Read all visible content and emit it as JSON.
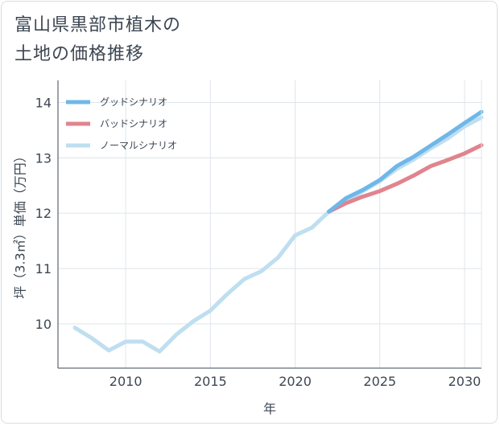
{
  "title_lines": [
    "富山県黒部市植木の",
    "土地の価格推移"
  ],
  "chart_data": {
    "type": "line",
    "title": "富山県黒部市植木の土地の価格推移",
    "xlabel": "年",
    "ylabel": "坪（3.3㎡）単価（万円）",
    "xlim": [
      2006,
      2031
    ],
    "ylim": [
      9.2,
      14.4
    ],
    "xticks": [
      2010,
      2015,
      2020,
      2025,
      2030
    ],
    "yticks": [
      10,
      11,
      12,
      13,
      14
    ],
    "legend_position": "top-left",
    "series": [
      {
        "name": "グッドシナリオ",
        "color": "#6fb7e8",
        "x": [
          2022,
          2023,
          2024,
          2025,
          2026,
          2027,
          2028,
          2029,
          2030,
          2031
        ],
        "y": [
          12.03,
          12.27,
          12.42,
          12.6,
          12.85,
          13.02,
          13.22,
          13.42,
          13.63,
          13.83
        ]
      },
      {
        "name": "バッドシナリオ",
        "color": "#e0848e",
        "x": [
          2022,
          2023,
          2024,
          2025,
          2026,
          2027,
          2028,
          2029,
          2030,
          2031
        ],
        "y": [
          12.03,
          12.18,
          12.3,
          12.4,
          12.53,
          12.68,
          12.85,
          12.96,
          13.08,
          13.23
        ]
      },
      {
        "name": "ノーマルシナリオ",
        "color": "#bfdff0",
        "x": [
          2007,
          2008,
          2009,
          2010,
          2011,
          2012,
          2013,
          2014,
          2015,
          2016,
          2017,
          2018,
          2019,
          2020,
          2021,
          2022,
          2023,
          2024,
          2025,
          2026,
          2027,
          2028,
          2029,
          2030,
          2031
        ],
        "y": [
          9.93,
          9.74,
          9.52,
          9.68,
          9.68,
          9.5,
          9.81,
          10.05,
          10.24,
          10.54,
          10.81,
          10.95,
          11.2,
          11.6,
          11.74,
          12.03,
          12.2,
          12.4,
          12.58,
          12.8,
          12.97,
          13.17,
          13.35,
          13.57,
          13.73
        ]
      }
    ]
  }
}
